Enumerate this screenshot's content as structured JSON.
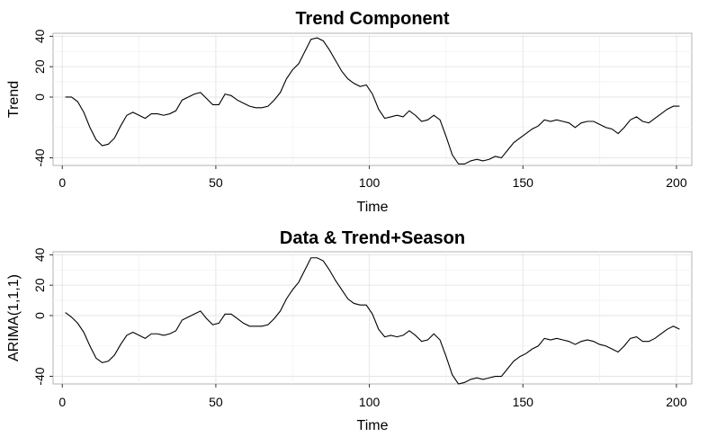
{
  "chart_data": [
    {
      "type": "line",
      "title": "Trend Component",
      "xlabel": "Time",
      "ylabel": "Trend",
      "xlim": [
        -3,
        205
      ],
      "ylim": [
        -45,
        42
      ],
      "xticks": [
        0,
        50,
        100,
        150,
        200
      ],
      "xtick_labels": [
        "0",
        "50",
        "100",
        "150",
        "200"
      ],
      "yticks": [
        -40,
        0,
        20,
        40
      ],
      "ytick_labels": [
        "-40",
        "0",
        "20",
        "40"
      ],
      "grid": true,
      "series": [
        {
          "x": [
            1,
            3,
            5,
            7,
            9,
            11,
            13,
            15,
            17,
            19,
            21,
            23,
            25,
            27,
            29,
            31,
            33,
            35,
            37,
            39,
            41,
            43,
            45,
            47,
            49,
            51,
            53,
            55,
            57,
            59,
            61,
            63,
            65,
            67,
            69,
            71,
            73,
            75,
            77,
            79,
            81,
            83,
            85,
            87,
            89,
            91,
            93,
            95,
            97,
            99,
            101,
            103,
            105,
            107,
            109,
            111,
            113,
            115,
            117,
            119,
            121,
            123,
            125,
            127,
            129,
            131,
            133,
            135,
            137,
            139,
            141,
            143,
            145,
            147,
            149,
            151,
            153,
            155,
            157,
            159,
            161,
            163,
            165,
            167,
            169,
            171,
            173,
            175,
            177,
            179,
            181,
            183,
            185,
            187,
            189,
            191,
            193,
            195,
            197,
            199,
            201
          ],
          "y": [
            0,
            0,
            -3,
            -10,
            -20,
            -28,
            -32,
            -31,
            -27,
            -19,
            -12,
            -10,
            -12,
            -14,
            -11,
            -11,
            -12,
            -11,
            -9,
            -2,
            0,
            2,
            3,
            -1,
            -5,
            -5,
            2,
            1,
            -2,
            -4,
            -6,
            -7,
            -7,
            -6,
            -2,
            3,
            12,
            18,
            22,
            30,
            38,
            39,
            37,
            31,
            24,
            17,
            12,
            9,
            7,
            8,
            2,
            -8,
            -14,
            -13,
            -12,
            -13,
            -9,
            -12,
            -16,
            -15,
            -12,
            -15,
            -26,
            -38,
            -44,
            -44,
            -42,
            -41,
            -42,
            -41,
            -39,
            -40,
            -35,
            -30,
            -27,
            -24,
            -21,
            -19,
            -15,
            -16,
            -15,
            -16,
            -17,
            -20,
            -17,
            -16,
            -16,
            -18,
            -20,
            -21,
            -24,
            -20,
            -15,
            -13,
            -16,
            -17,
            -14,
            -11,
            -8,
            -6,
            -6
          ]
        }
      ]
    },
    {
      "type": "line",
      "title": "Data & Trend+Season",
      "xlabel": "Time",
      "ylabel": "ARIMA(1,1,1)",
      "xlim": [
        -3,
        205
      ],
      "ylim": [
        -45,
        42
      ],
      "xticks": [
        0,
        50,
        100,
        150,
        200
      ],
      "xtick_labels": [
        "0",
        "50",
        "100",
        "150",
        "200"
      ],
      "yticks": [
        -40,
        0,
        20,
        40
      ],
      "ytick_labels": [
        "-40",
        "0",
        "20",
        "40"
      ],
      "grid": true,
      "series": [
        {
          "x": [
            1,
            3,
            5,
            7,
            9,
            11,
            13,
            15,
            17,
            19,
            21,
            23,
            25,
            27,
            29,
            31,
            33,
            35,
            37,
            39,
            41,
            43,
            45,
            47,
            49,
            51,
            53,
            55,
            57,
            59,
            61,
            63,
            65,
            67,
            69,
            71,
            73,
            75,
            77,
            79,
            81,
            83,
            85,
            87,
            89,
            91,
            93,
            95,
            97,
            99,
            101,
            103,
            105,
            107,
            109,
            111,
            113,
            115,
            117,
            119,
            121,
            123,
            125,
            127,
            129,
            131,
            133,
            135,
            137,
            139,
            141,
            143,
            145,
            147,
            149,
            151,
            153,
            155,
            157,
            159,
            161,
            163,
            165,
            167,
            169,
            171,
            173,
            175,
            177,
            179,
            181,
            183,
            185,
            187,
            189,
            191,
            193,
            195,
            197,
            199,
            201
          ],
          "y": [
            2,
            -1,
            -5,
            -11,
            -20,
            -28,
            -31,
            -30,
            -26,
            -19,
            -13,
            -11,
            -13,
            -15,
            -12,
            -12,
            -13,
            -12,
            -10,
            -3,
            -1,
            1,
            3,
            -2,
            -6,
            -5,
            1,
            1,
            -2,
            -5,
            -7,
            -7,
            -7,
            -6,
            -2,
            3,
            11,
            17,
            22,
            30,
            38,
            38,
            36,
            30,
            23,
            17,
            11,
            8,
            7,
            7,
            1,
            -9,
            -14,
            -13,
            -14,
            -13,
            -10,
            -13,
            -17,
            -16,
            -12,
            -16,
            -27,
            -39,
            -45,
            -44,
            -42,
            -41,
            -42,
            -41,
            -40,
            -40,
            -35,
            -30,
            -27,
            -25,
            -22,
            -20,
            -15,
            -16,
            -15,
            -16,
            -17,
            -19,
            -17,
            -16,
            -17,
            -19,
            -20,
            -22,
            -24,
            -20,
            -15,
            -14,
            -17,
            -17,
            -15,
            -12,
            -9,
            -7,
            -9
          ]
        }
      ]
    }
  ]
}
